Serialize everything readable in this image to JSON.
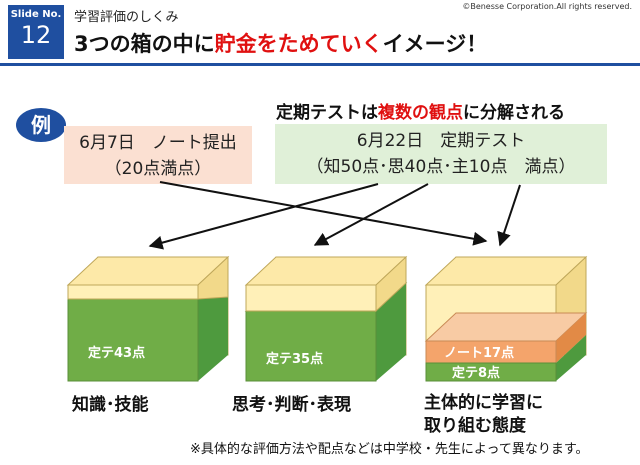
{
  "header": {
    "copyright": "©Benesse Corporation.All rights reserved.",
    "slide_label": "Slide No.",
    "slide_number": "12",
    "subtitle": "学習評価のしくみ",
    "title_before": "3つの箱の中に",
    "title_highlight": "貯金をためていく",
    "title_after": "イメージ！"
  },
  "example_badge": "例",
  "heading": {
    "before": "定期テストは",
    "highlight": "複数の観点",
    "after": "に分解される"
  },
  "note_box": {
    "line1": "6月7日　ノート提出",
    "line2": "（20点満点）"
  },
  "test_box": {
    "line1": "6月22日　定期テスト",
    "line2": "（知50点･思40点･主10点　満点）"
  },
  "cubes": [
    {
      "label": "知識･技能",
      "layers": [
        {
          "text": "定テ43点"
        }
      ]
    },
    {
      "label": "思考･判断･表現",
      "layers": [
        {
          "text": "定テ35点"
        }
      ]
    },
    {
      "label_line1": "主体的に学習に",
      "label_line2": "取り組む態度",
      "layers": [
        {
          "text": "定テ8点"
        },
        {
          "text": "ノート17点"
        }
      ]
    }
  ],
  "footnote": "※具体的な評価方法や配点などは中学校・先生によって異なります。",
  "colors": {
    "brand_blue": "#1f4fa0",
    "accent_red": "#e01010",
    "cube_yellow": "#fde9a8",
    "fill_green": "#6fbf5e",
    "fill_orange": "#f4b183"
  }
}
